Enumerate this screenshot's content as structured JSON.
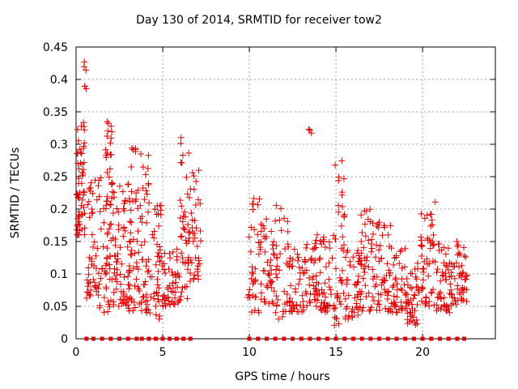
{
  "chart_data": {
    "type": "scatter",
    "title": "Day 130 of 2014, SRMTID for receiver tow2",
    "xlabel": "GPS time / hours",
    "ylabel": "SRMTID / TECUs",
    "xlim": [
      0,
      24.2
    ],
    "ylim": [
      0,
      0.45
    ],
    "xticks": [
      0,
      5,
      10,
      15,
      20
    ],
    "yticks": [
      0,
      0.05,
      0.1,
      0.15,
      0.2,
      0.25,
      0.3,
      0.35,
      0.4,
      0.45
    ],
    "xtick_labels": [
      "0",
      "5",
      "10",
      "15",
      "20"
    ],
    "ytick_labels": [
      "0",
      "0.05",
      "0.1",
      "0.15",
      "0.2",
      "0.25",
      "0.3",
      "0.35",
      "0.4",
      "0.45"
    ],
    "grid": true,
    "marker": "plus",
    "color": "#e00000",
    "series": [
      {
        "name": "SRMTID",
        "clusters": [
          {
            "x": [
              0.05,
              0.5
            ],
            "y": [
              0.16,
              0.34
            ],
            "n": 60
          },
          {
            "x": [
              0.4,
              0.6
            ],
            "y": [
              0.38,
              0.44
            ],
            "n": 6
          },
          {
            "x": [
              0.6,
              1.3
            ],
            "y": [
              0.06,
              0.25
            ],
            "n": 45
          },
          {
            "x": [
              1.3,
              2.2
            ],
            "y": [
              0.04,
              0.25
            ],
            "n": 55
          },
          {
            "x": [
              1.7,
              2.1
            ],
            "y": [
              0.2,
              0.34
            ],
            "n": 25
          },
          {
            "x": [
              2.2,
              3.0
            ],
            "y": [
              0.05,
              0.25
            ],
            "n": 50
          },
          {
            "x": [
              2.9,
              3.6
            ],
            "y": [
              0.04,
              0.3
            ],
            "n": 55
          },
          {
            "x": [
              3.6,
              4.2
            ],
            "y": [
              0.04,
              0.3
            ],
            "n": 45
          },
          {
            "x": [
              4.2,
              5.0
            ],
            "y": [
              0.03,
              0.21
            ],
            "n": 45
          },
          {
            "x": [
              5.0,
              6.0
            ],
            "y": [
              0.05,
              0.14
            ],
            "n": 50
          },
          {
            "x": [
              6.0,
              6.6
            ],
            "y": [
              0.06,
              0.34
            ],
            "n": 45
          },
          {
            "x": [
              6.6,
              7.2
            ],
            "y": [
              0.09,
              0.26
            ],
            "n": 35
          },
          {
            "x": [
              9.9,
              10.6
            ],
            "y": [
              0.04,
              0.22
            ],
            "n": 35
          },
          {
            "x": [
              10.6,
              11.4
            ],
            "y": [
              0.05,
              0.2
            ],
            "n": 40
          },
          {
            "x": [
              11.4,
              12.3
            ],
            "y": [
              0.03,
              0.21
            ],
            "n": 40
          },
          {
            "x": [
              12.3,
              13.2
            ],
            "y": [
              0.04,
              0.14
            ],
            "n": 45
          },
          {
            "x": [
              13.2,
              14.0
            ],
            "y": [
              0.05,
              0.17
            ],
            "n": 40
          },
          {
            "x": [
              13.4,
              13.6
            ],
            "y": [
              0.31,
              0.33
            ],
            "n": 3
          },
          {
            "x": [
              14.0,
              14.9
            ],
            "y": [
              0.04,
              0.17
            ],
            "n": 45
          },
          {
            "x": [
              14.9,
              15.5
            ],
            "y": [
              0.02,
              0.28
            ],
            "n": 40
          },
          {
            "x": [
              15.5,
              16.4
            ],
            "y": [
              0.03,
              0.14
            ],
            "n": 45
          },
          {
            "x": [
              16.4,
              17.2
            ],
            "y": [
              0.04,
              0.2
            ],
            "n": 45
          },
          {
            "x": [
              17.2,
              18.2
            ],
            "y": [
              0.04,
              0.18
            ],
            "n": 50
          },
          {
            "x": [
              18.2,
              19.1
            ],
            "y": [
              0.04,
              0.14
            ],
            "n": 45
          },
          {
            "x": [
              19.1,
              19.8
            ],
            "y": [
              0.02,
              0.12
            ],
            "n": 40
          },
          {
            "x": [
              19.9,
              20.8
            ],
            "y": [
              0.05,
              0.22
            ],
            "n": 50
          },
          {
            "x": [
              20.8,
              21.6
            ],
            "y": [
              0.04,
              0.15
            ],
            "n": 45
          },
          {
            "x": [
              21.6,
              22.6
            ],
            "y": [
              0.05,
              0.15
            ],
            "n": 50
          }
        ],
        "zero_x": [
          0.6,
          1.0,
          1.5,
          2.0,
          2.5,
          3.0,
          3.5,
          3.8,
          4.2,
          4.6,
          5.0,
          5.4,
          5.8,
          6.2,
          6.6,
          10.0,
          10.5,
          11.0,
          11.5,
          12.0,
          12.5,
          13.0,
          13.5,
          14.0,
          14.5,
          15.0,
          15.5,
          16.0,
          16.5,
          17.0,
          17.5,
          18.0,
          18.5,
          19.0,
          19.5,
          20.0,
          20.5,
          21.0,
          21.5,
          22.0,
          22.4
        ]
      }
    ]
  }
}
